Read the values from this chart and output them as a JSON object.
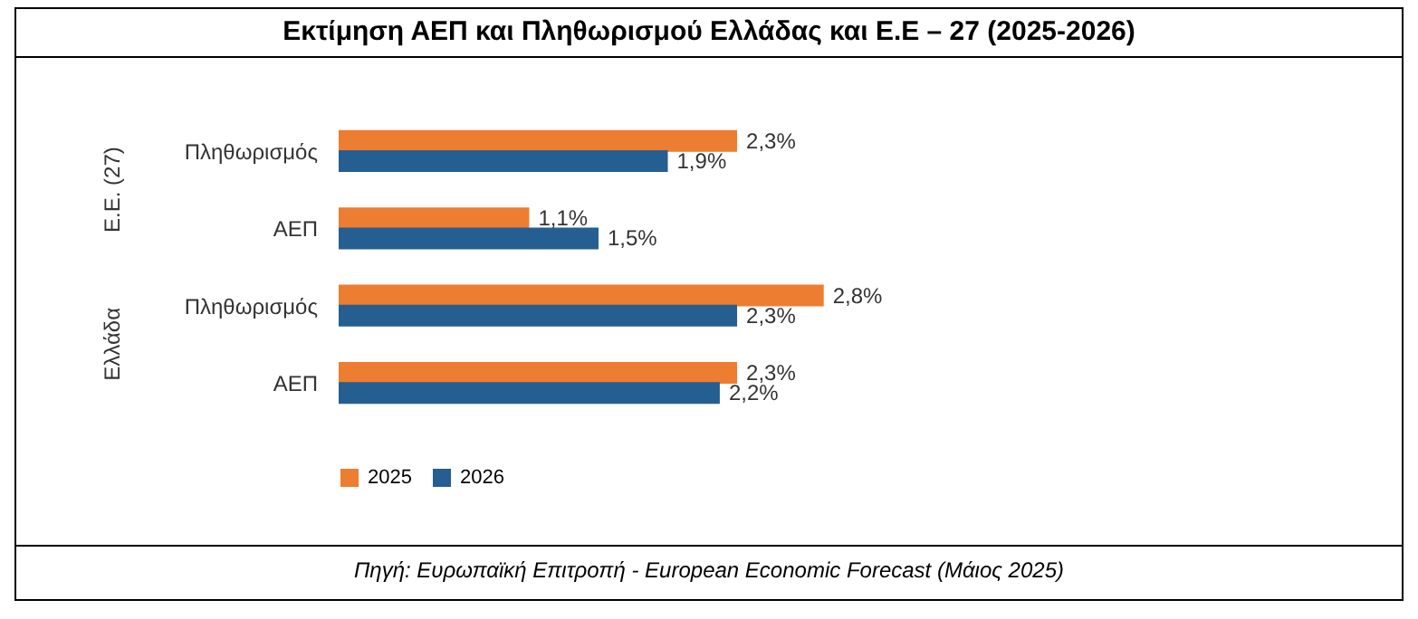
{
  "chart_data": {
    "type": "bar",
    "orientation": "horizontal",
    "title": "Εκτίμηση ΑΕΠ και Πληθωρισμού Ελλάδας και Ε.Ε – 27 (2025-2026)",
    "categories": [
      "Πληθωρισμός",
      "ΑΕΠ",
      "Πληθωρισμός",
      "ΑΕΠ"
    ],
    "series": [
      {
        "name": "2025",
        "color": "#ed7d31",
        "values": [
          2.3,
          1.1,
          2.8,
          2.3
        ],
        "value_labels": [
          "2,3%",
          "1,1%",
          "2,8%",
          "2,3%"
        ]
      },
      {
        "name": "2026",
        "color": "#255e91",
        "values": [
          1.9,
          1.5,
          2.3,
          2.2
        ],
        "value_labels": [
          "1,9%",
          "1,5%",
          "2,3%",
          "2,2%"
        ]
      }
    ],
    "annotations": [
      "Ε.Ε. (27)",
      "Ελλάδα",
      "Πηγή: Ευρωπαϊκή Επιτροπή -  European Economic Forecast (Μάιος 2025)"
    ],
    "legend": "bottom",
    "grid": false
  }
}
